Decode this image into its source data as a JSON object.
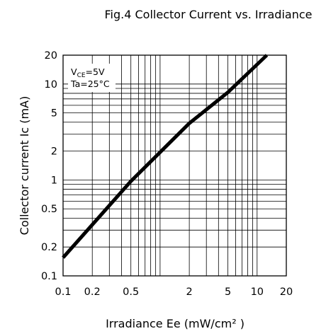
{
  "chart_data": {
    "type": "line",
    "title": "Fig.4   Collector Current vs. Irradiance",
    "xlabel": "Irradiance Ee (mW/cm² )",
    "ylabel": "Collector current Ic (mA)",
    "xscale": "log",
    "yscale": "log",
    "xlim": [
      0.1,
      20
    ],
    "ylim": [
      0.1,
      20
    ],
    "x_tick_labels": [
      "0.1",
      "0.2",
      "0.5",
      "2",
      "5",
      "10",
      "20"
    ],
    "x_tick_values": [
      0.1,
      0.2,
      0.5,
      2,
      5,
      10,
      20
    ],
    "y_tick_labels": [
      "0.1",
      "0.2",
      "0.5",
      "1",
      "2",
      "5",
      "10",
      "20"
    ],
    "y_tick_values": [
      0.1,
      0.2,
      0.5,
      1,
      2,
      5,
      10,
      20
    ],
    "grid": true,
    "conditions": [
      "V CE =5V",
      "Ta=25°C"
    ],
    "series": [
      {
        "color": "#000000",
        "x": [
          0.1,
          0.5,
          2,
          5,
          12.6
        ],
        "y": [
          0.155,
          0.97,
          3.9,
          8.2,
          20
        ]
      }
    ]
  }
}
